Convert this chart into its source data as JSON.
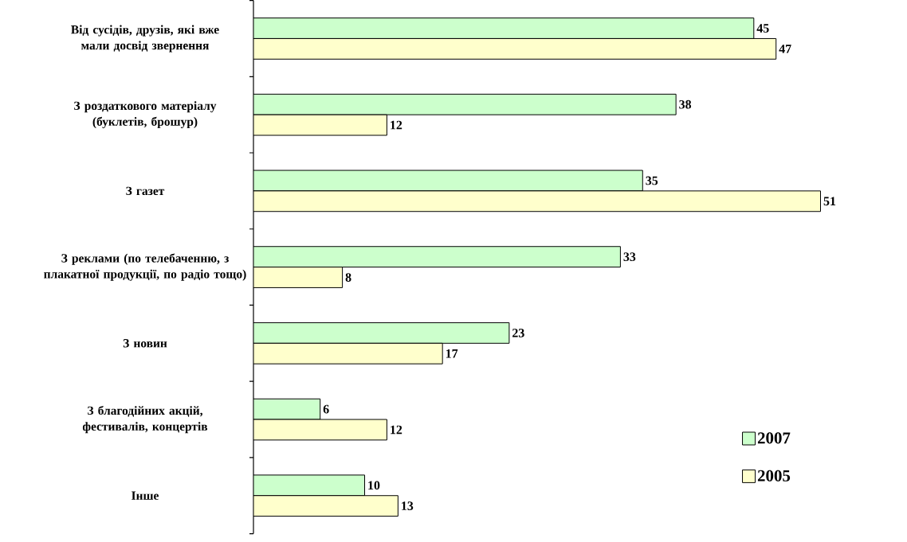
{
  "chart_data": {
    "type": "bar",
    "orientation": "horizontal",
    "categories": [
      "Від сусідів, друзів, які вже мали досвід звернення",
      "З роздаткового матеріалу (буклетів, брошур)",
      "З газет",
      "З реклами (по телебаченню, з плакатної продукції, по радіо тощо)",
      "З новин",
      "З благодійних акцій, фестивалів, концертів",
      "Інше"
    ],
    "series": [
      {
        "name": "2007",
        "color": "#ccffcc",
        "values": [
          45,
          38,
          35,
          33,
          23,
          6,
          10
        ]
      },
      {
        "name": "2005",
        "color": "#ffffcc",
        "values": [
          47,
          12,
          51,
          8,
          17,
          12,
          13
        ]
      }
    ],
    "data_labels": true,
    "legend": "bottom right"
  }
}
